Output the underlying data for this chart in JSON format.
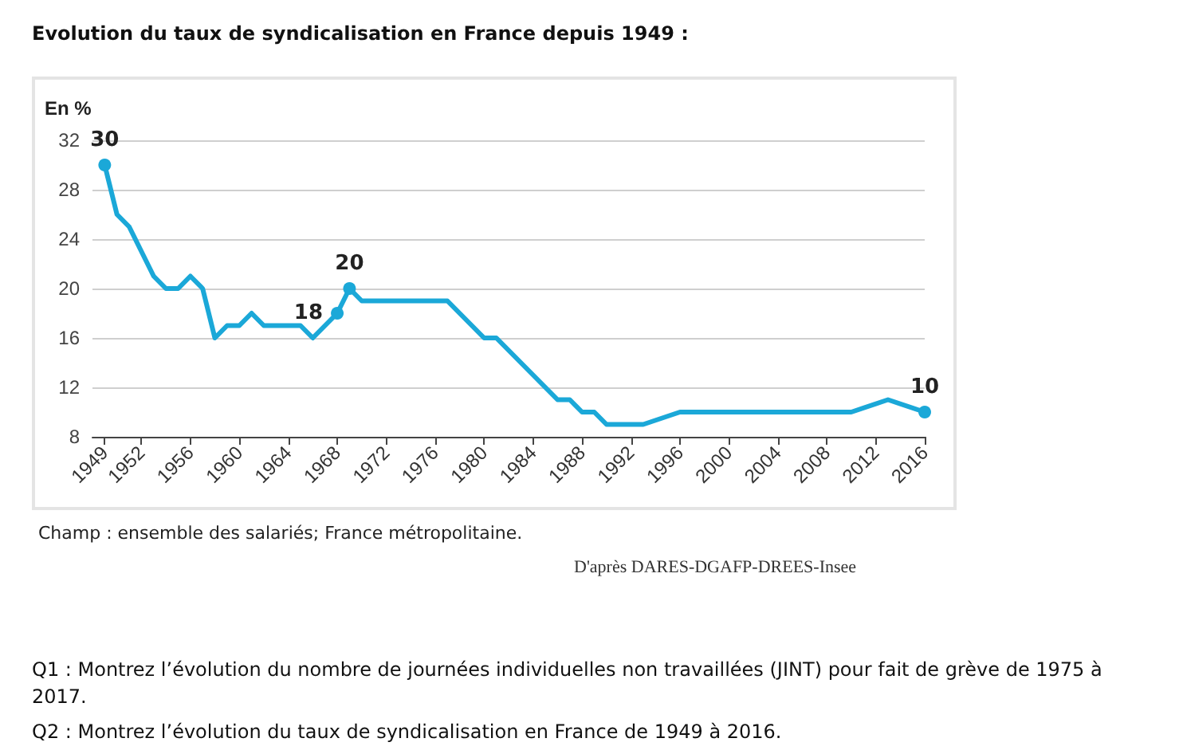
{
  "chart_data": {
    "type": "line",
    "title": "Evolution du taux de syndicalisation en France depuis 1949 :",
    "ylabel": "En %",
    "x": [
      1949,
      1950,
      1951,
      1953,
      1954,
      1955,
      1956,
      1957,
      1958,
      1959,
      1960,
      1961,
      1962,
      1965,
      1966,
      1968,
      1969,
      1970,
      1977,
      1980,
      1981,
      1986,
      1987,
      1988,
      1989,
      1990,
      1993,
      1996,
      2010,
      2013,
      2016
    ],
    "series": [
      {
        "color": "#1ba8d8",
        "values": [
          30,
          26,
          25,
          21,
          20,
          20,
          21,
          20,
          16,
          17,
          17,
          18,
          17,
          17,
          16,
          18,
          20,
          19,
          19,
          16,
          16,
          11,
          11,
          10,
          10,
          9,
          9,
          10,
          10,
          11,
          10
        ],
        "value_labels": [
          "30",
          null,
          null,
          null,
          null,
          null,
          null,
          null,
          null,
          null,
          null,
          null,
          null,
          null,
          null,
          "18",
          "20",
          null,
          null,
          null,
          null,
          null,
          null,
          null,
          null,
          null,
          null,
          null,
          null,
          null,
          "10"
        ]
      }
    ],
    "xlim": [
      1948,
      2016
    ],
    "xticks": [
      1949,
      1952,
      1956,
      1960,
      1964,
      1968,
      1972,
      1976,
      1980,
      1984,
      1988,
      1992,
      1996,
      2000,
      2004,
      2008,
      2012,
      2016
    ],
    "ylim": [
      8,
      32
    ],
    "yticks": [
      8,
      12,
      16,
      20,
      24,
      28,
      32
    ],
    "grid": "y",
    "marker": "none",
    "line_style": "solid",
    "annotations": [
      "Champ : ensemble des salariés; France métropolitaine.",
      "D'après DARES-DGAFP-DREES-Insee",
      "Q1 : Montrez l’évolution du nombre de journées individuelles non travaillées (JINT) pour fait de grève de 1975 à 2017.",
      "Q2 : Montrez l’évolution du taux de syndicalisation en France de 1949 à 2016."
    ]
  }
}
